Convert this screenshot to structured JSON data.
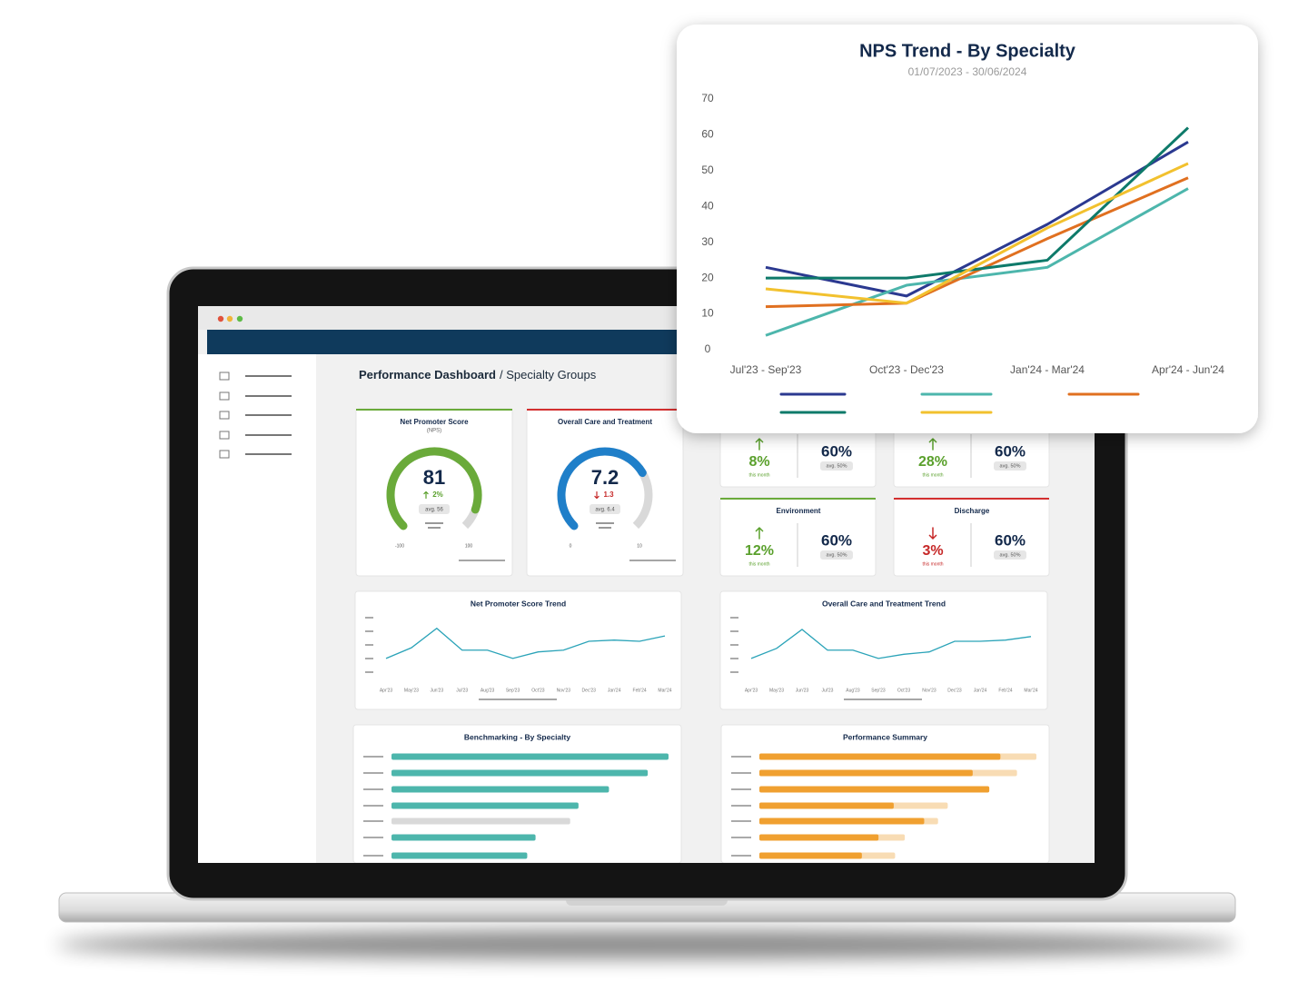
{
  "dashboard": {
    "heading": "Performance Dashboard",
    "breadcrumb": "/ Specialty Groups",
    "gauges": [
      {
        "title": "Net Promoter Score",
        "subtitle": "(NPS)",
        "value": 81,
        "change": "2%",
        "trend": "up",
        "avg": "avg. 56",
        "min": -100,
        "max": 100,
        "color": "#6aaa3a",
        "border": "#6aaa3a"
      },
      {
        "title": "Overall Care and Treatment",
        "value": 7.2,
        "change": "1.3",
        "trend": "down",
        "avg": "avg. 6.4",
        "min": 0,
        "max": 10,
        "color": "#1f7fc9",
        "border": "#d32f2f"
      }
    ],
    "tiles": [
      {
        "value": "8%",
        "trend": "up",
        "caption": "this month",
        "score": "60%",
        "avg": "avg. 50%"
      },
      {
        "value": "28%",
        "trend": "up",
        "caption": "this month",
        "score": "60%",
        "avg": "avg. 50%"
      },
      {
        "title": "Environment",
        "value": "12%",
        "trend": "up",
        "caption": "this month",
        "score": "60%",
        "avg": "avg. 50%",
        "border": "#6aaa3a"
      },
      {
        "title": "Discharge",
        "value": "3%",
        "trend": "down",
        "caption": "this month",
        "score": "60%",
        "avg": "avg. 50%",
        "border": "#d32f2f"
      }
    ]
  },
  "chart_data": [
    {
      "type": "line",
      "title": "NPS Trend - By Specialty",
      "subtitle": "01/07/2023 - 30/06/2024",
      "categories": [
        "Jul'23 - Sep'23",
        "Oct'23 - Dec'23",
        "Jan'24 - Mar'24",
        "Apr'24 - Jun'24"
      ],
      "series": [
        {
          "color": "#2b3990",
          "values": [
            23,
            15,
            35,
            58
          ]
        },
        {
          "color": "#4db6ac",
          "values": [
            4,
            18,
            23,
            45
          ]
        },
        {
          "color": "#e07020",
          "values": [
            12,
            13,
            31,
            48
          ]
        },
        {
          "color": "#0e7a6a",
          "values": [
            20,
            20,
            25,
            62
          ]
        },
        {
          "color": "#f2c12e",
          "values": [
            17,
            13,
            34,
            52
          ]
        }
      ],
      "ylim": [
        0,
        70
      ],
      "yticks": [
        0,
        10,
        20,
        30,
        40,
        50,
        60,
        70
      ],
      "grid": false,
      "legend": "bottom"
    },
    {
      "type": "line",
      "title": "Net Promoter Score Trend",
      "categories": [
        "Apr'23",
        "May'23",
        "Jun'23",
        "Jul'23",
        "Aug'23",
        "Sep'23",
        "Oct'23",
        "Nov'23",
        "Dec'23",
        "Jan'24",
        "Feb'24",
        "Mar'24"
      ],
      "values": [
        31,
        49,
        82,
        45,
        45,
        31,
        42,
        45,
        60,
        62,
        60,
        69
      ],
      "color": "#2aa3b8",
      "ylim": [
        0,
        100
      ]
    },
    {
      "type": "line",
      "title": "Overall Care and Treatment Trend",
      "categories": [
        "Apr'23",
        "May'23",
        "Jun'23",
        "Jul'23",
        "Aug'23",
        "Sep'23",
        "Oct'23",
        "Nov'23",
        "Dec'23",
        "Jan'24",
        "Feb'24",
        "Mar'24"
      ],
      "values": [
        31,
        48,
        80,
        45,
        45,
        31,
        38,
        42,
        60,
        60,
        62,
        68
      ],
      "color": "#2aa3b8",
      "ylim": [
        0,
        100
      ]
    },
    {
      "type": "hbar",
      "title": "Benchmarking - By Specialty",
      "values": [
        100,
        92.5,
        78.5,
        67.5,
        64.5,
        52,
        49
      ],
      "colors": [
        "#4db6ac",
        "#4db6ac",
        "#4db6ac",
        "#4db6ac",
        "#d9d9d9",
        "#4db6ac",
        "#4db6ac"
      ],
      "xlim": [
        0,
        100
      ]
    },
    {
      "type": "hbar",
      "title": "Performance Summary",
      "series": [
        {
          "color": "#f8dcb4",
          "values": [
            100,
            93,
            null,
            68,
            64.5,
            52.5,
            49
          ]
        },
        {
          "color": "#f0a030",
          "values": [
            87,
            77,
            83,
            48.5,
            59.5,
            43,
            37
          ]
        }
      ],
      "xlim": [
        0,
        100
      ]
    }
  ]
}
